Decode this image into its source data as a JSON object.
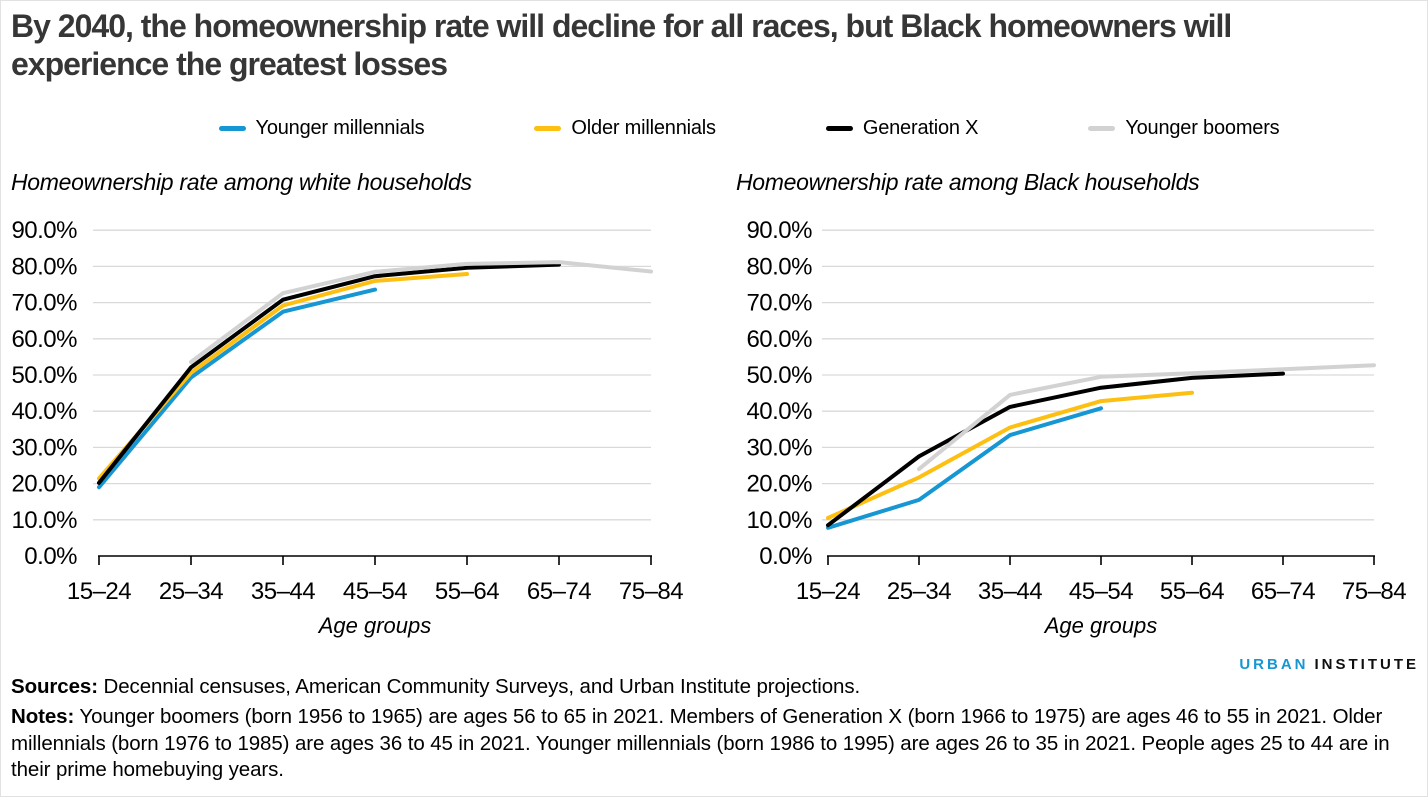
{
  "title": "By 2040, the homeownership rate will decline for all races, but Black homeowners will experience the greatest losses",
  "legend": [
    {
      "label": "Younger millennials",
      "color": "#1696d2"
    },
    {
      "label": "Older millennials",
      "color": "#fdbf11"
    },
    {
      "label": "Generation X",
      "color": "#000000"
    },
    {
      "label": "Younger boomers",
      "color": "#d2d2d2"
    }
  ],
  "colors": {
    "accent_blue": "#1696d2",
    "accent_yellow": "#fdbf11",
    "accent_black": "#000000",
    "accent_gray": "#d2d2d2",
    "gridline": "#d9d9d9"
  },
  "chart_data": [
    {
      "type": "line",
      "title": "Homeownership rate among white households",
      "xlabel": "Age groups",
      "ylabel": "",
      "ylim": [
        0,
        90
      ],
      "grid": true,
      "legend_position": "top",
      "categories": [
        "15–24",
        "25–34",
        "35–44",
        "45–54",
        "55–64",
        "65–74",
        "75–84"
      ],
      "yticks": [
        {
          "value": 0,
          "label": "0.0%"
        },
        {
          "value": 10,
          "label": "10.0%"
        },
        {
          "value": 20,
          "label": "20.0%"
        },
        {
          "value": 30,
          "label": "30.0%"
        },
        {
          "value": 40,
          "label": "40.0%"
        },
        {
          "value": 50,
          "label": "50.0%"
        },
        {
          "value": 60,
          "label": "60.0%"
        },
        {
          "value": 70,
          "label": "70.0%"
        },
        {
          "value": 80,
          "label": "80.0%"
        },
        {
          "value": 90,
          "label": "90.0%"
        }
      ],
      "series": [
        {
          "name": "Younger millennials",
          "color": "#1696d2",
          "values": [
            19.0,
            49.3,
            67.5,
            73.6,
            null,
            null,
            null
          ]
        },
        {
          "name": "Older millennials",
          "color": "#fdbf11",
          "values": [
            21.4,
            50.6,
            69.2,
            76.0,
            77.9,
            null,
            null
          ]
        },
        {
          "name": "Generation X",
          "color": "#000000",
          "values": [
            20.2,
            52.1,
            70.8,
            77.3,
            79.6,
            80.5,
            null
          ]
        },
        {
          "name": "Younger boomers",
          "color": "#d2d2d2",
          "values": [
            null,
            53.6,
            72.6,
            78.5,
            80.7,
            81.2,
            78.6
          ]
        }
      ]
    },
    {
      "type": "line",
      "title": "Homeownership rate among Black households",
      "xlabel": "Age groups",
      "ylabel": "",
      "ylim": [
        0,
        90
      ],
      "grid": true,
      "legend_position": "top",
      "categories": [
        "15–24",
        "25–34",
        "35–44",
        "45–54",
        "55–64",
        "65–74",
        "75–84"
      ],
      "yticks": [
        {
          "value": 0,
          "label": "0.0%"
        },
        {
          "value": 10,
          "label": "10.0%"
        },
        {
          "value": 20,
          "label": "20.0%"
        },
        {
          "value": 30,
          "label": "30.0%"
        },
        {
          "value": 40,
          "label": "40.0%"
        },
        {
          "value": 50,
          "label": "50.0%"
        },
        {
          "value": 60,
          "label": "60.0%"
        },
        {
          "value": 70,
          "label": "70.0%"
        },
        {
          "value": 80,
          "label": "80.0%"
        },
        {
          "value": 90,
          "label": "90.0%"
        }
      ],
      "series": [
        {
          "name": "Younger millennials",
          "color": "#1696d2",
          "values": [
            7.8,
            15.5,
            33.4,
            40.8,
            null,
            null,
            null
          ]
        },
        {
          "name": "Older millennials",
          "color": "#fdbf11",
          "values": [
            10.5,
            21.7,
            35.5,
            42.8,
            45.1,
            null,
            null
          ]
        },
        {
          "name": "Generation X",
          "color": "#000000",
          "values": [
            8.5,
            27.5,
            41.2,
            46.5,
            49.2,
            50.4,
            null
          ]
        },
        {
          "name": "Younger boomers",
          "color": "#d2d2d2",
          "values": [
            null,
            24.0,
            44.5,
            49.5,
            50.5,
            51.6,
            52.7
          ]
        }
      ]
    }
  ],
  "footer": {
    "logo_urban": "URBAN",
    "logo_institute": "INSTITUTE",
    "sources_label": "Sources:",
    "sources_text": "Decennial censuses, American Community Surveys, and Urban Institute projections.",
    "notes_label": "Notes:",
    "notes_text": "Younger boomers (born 1956 to 1965) are ages 56 to 65 in 2021. Members of Generation X (born 1966 to 1975) are ages 46 to 55 in 2021. Older millennials (born 1976 to 1985) are ages 36 to 45 in 2021. Younger millennials (born 1986 to 1995) are ages 26 to 35 in 2021. People ages 25 to 44 are in their prime homebuying years."
  }
}
